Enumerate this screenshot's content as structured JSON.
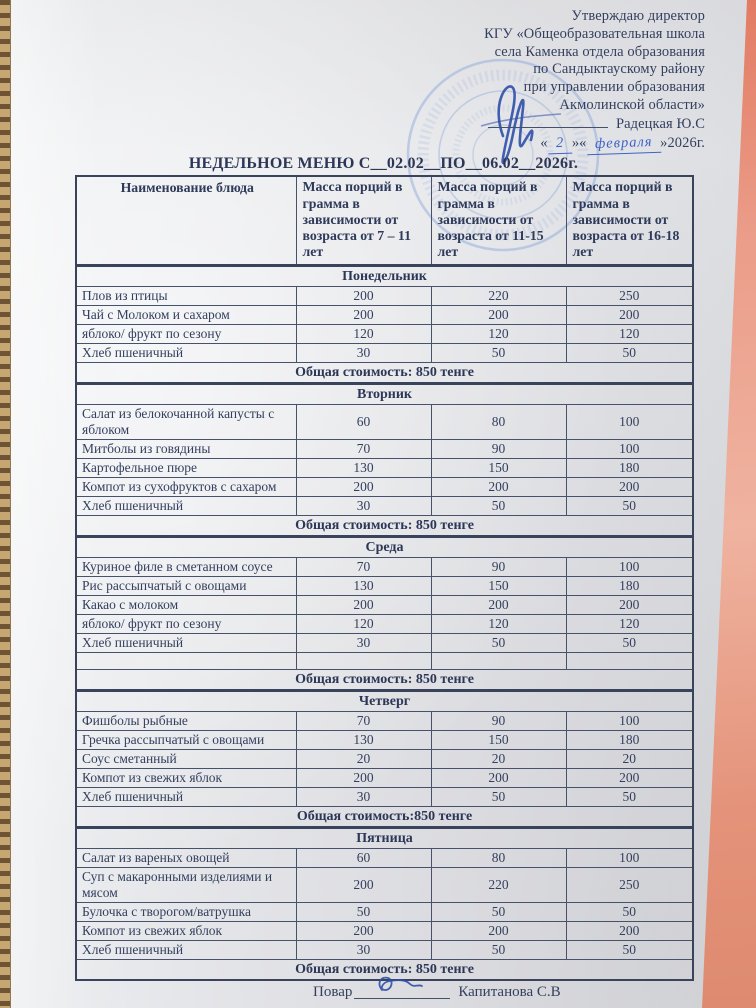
{
  "approval": {
    "lines": [
      "Утверждаю директор",
      "КГУ «Общеобразовательная школа",
      "села Каменка отдела образования",
      "по Сандыктаускому району",
      "при управлении образования",
      "Акмолинской  области»"
    ],
    "director_name": "Радецкая Ю.С",
    "date": {
      "open": "«",
      "day": "2",
      "mid": "»«",
      "month": "февраля",
      "close": "»2026г."
    }
  },
  "title": "НЕДЕЛЬНОЕ МЕНЮ С__02.02__ПО__06.02__2026г.",
  "table": {
    "headers": [
      "Наименование блюда",
      "Масса порций в грамма в зависимости от возраста от 7 – 11 лет",
      "Масса порций в грамма в зависимости от возраста от 11-15 лет",
      "Масса порций в грамма в зависимости от возраста от 16-18 лет"
    ],
    "days": [
      {
        "name": "Понедельник",
        "rows": [
          {
            "dish": "Плов из птицы",
            "portions": [
              "200",
              "220",
              "250"
            ]
          },
          {
            "dish": "Чай с Молоком и сахаром",
            "portions": [
              "200",
              "200",
              "200"
            ]
          },
          {
            "dish": "яблоко/ фрукт по сезону",
            "portions": [
              "120",
              "120",
              "120"
            ]
          },
          {
            "dish": "Хлеб пшеничный",
            "portions": [
              "30",
              "50",
              "50"
            ]
          }
        ],
        "total": "Общая стоимость: 850 тенге"
      },
      {
        "name": "Вторник",
        "rows": [
          {
            "dish": "Салат из белокочанной капусты с яблоком",
            "portions": [
              "60",
              "80",
              "100"
            ]
          },
          {
            "dish": "Митболы из говядины",
            "portions": [
              "70",
              "90",
              "100"
            ]
          },
          {
            "dish": "Картофельное пюре",
            "portions": [
              "130",
              "150",
              "180"
            ]
          },
          {
            "dish": "Компот из сухофруктов с сахаром",
            "portions": [
              "200",
              "200",
              "200"
            ]
          },
          {
            "dish": "Хлеб пшеничный",
            "portions": [
              "30",
              "50",
              "50"
            ]
          }
        ],
        "total": "Общая стоимость: 850 тенге"
      },
      {
        "name": "Среда",
        "rows": [
          {
            "dish": "Куриное филе в сметанном соусе",
            "portions": [
              "70",
              "90",
              "100"
            ]
          },
          {
            "dish": "Рис рассыпчатый с овощами",
            "portions": [
              "130",
              "150",
              "180"
            ]
          },
          {
            "dish": "Какао с молоком",
            "portions": [
              "200",
              "200",
              "200"
            ]
          },
          {
            "dish": "яблоко/ фрукт по сезону",
            "portions": [
              "120",
              "120",
              "120"
            ]
          },
          {
            "dish": "Хлеб пшеничный",
            "portions": [
              "30",
              "50",
              "50"
            ]
          },
          {
            "dish": "",
            "portions": [
              "",
              "",
              ""
            ],
            "empty": true
          }
        ],
        "total": "Общая стоимость: 850 тенге"
      },
      {
        "name": "Четверг",
        "rows": [
          {
            "dish": "Фишболы рыбные",
            "portions": [
              "70",
              "90",
              "100"
            ]
          },
          {
            "dish": "Гречка  рассыпчатый с овощами",
            "portions": [
              "130",
              "150",
              "180"
            ]
          },
          {
            "dish": "Соус сметанный",
            "portions": [
              "20",
              "20",
              "20"
            ]
          },
          {
            "dish": "Компот из свежих яблок",
            "portions": [
              "200",
              "200",
              "200"
            ]
          },
          {
            "dish": "Хлеб пшеничный",
            "portions": [
              "30",
              "50",
              "50"
            ]
          }
        ],
        "total": "Общая стоимость:850 тенге"
      },
      {
        "name": "Пятница",
        "rows": [
          {
            "dish": "Салат из вареных овощей",
            "portions": [
              "60",
              "80",
              "100"
            ]
          },
          {
            "dish": "Суп с макаронными изделиями и мясом",
            "portions": [
              "200",
              "220",
              "250"
            ]
          },
          {
            "dish": "Булочка с творогом/ватрушка",
            "portions": [
              "50",
              "50",
              "50"
            ]
          },
          {
            "dish": "Компот из свежих яблок",
            "portions": [
              "200",
              "200",
              "200"
            ]
          },
          {
            "dish": "Хлеб пшеничный",
            "portions": [
              "30",
              "50",
              "50"
            ]
          }
        ],
        "total": "Общая стоимость: 850  тенге"
      }
    ]
  },
  "footer": {
    "cook_label": "Повар",
    "cook_name": "Капитанова С.В"
  },
  "colors": {
    "background_pink": "#e8947e",
    "paper": "#e6e7ea",
    "ink": "#333f5e",
    "handwriting_blue": "#3d63c6",
    "stamp_blue": "#7b9cd6"
  }
}
